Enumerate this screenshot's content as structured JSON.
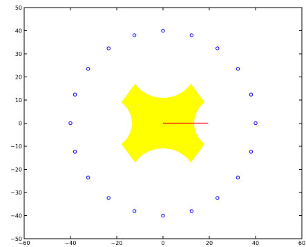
{
  "chart_data": {
    "type": "scatter",
    "title": "",
    "xlabel": "",
    "ylabel": "",
    "xlim": [
      -60,
      60
    ],
    "ylim": [
      -50,
      50
    ],
    "x_ticks": [
      -60,
      -40,
      -20,
      0,
      20,
      40,
      60
    ],
    "y_ticks": [
      -50,
      -40,
      -30,
      -20,
      -10,
      0,
      10,
      20,
      30,
      40,
      50
    ],
    "x_tick_labels": [
      "−60",
      "−40",
      "−20",
      "0",
      "20",
      "40",
      "60"
    ],
    "y_tick_labels": [
      "−50",
      "−40",
      "−30",
      "−20",
      "−10",
      "0",
      "10",
      "20",
      "30",
      "40",
      "50"
    ],
    "grid": false,
    "legend": "none",
    "series": [
      {
        "kind": "markers",
        "marker": "circle",
        "color": "#0000ff",
        "x": [
          40,
          38.04,
          32.36,
          23.51,
          12.36,
          0,
          -12.36,
          -23.51,
          -32.36,
          -38.04,
          -40,
          -38.04,
          -32.36,
          -23.51,
          -12.36,
          0,
          12.36,
          23.51,
          32.36,
          38.04
        ],
        "y": [
          0,
          12.36,
          23.51,
          32.36,
          38.04,
          40,
          38.04,
          32.36,
          23.51,
          12.36,
          0,
          -12.36,
          -23.51,
          -32.36,
          -38.04,
          -40,
          -38.04,
          -32.36,
          -23.51,
          -12.36
        ]
      },
      {
        "kind": "filled-shape",
        "color": "#ffff00",
        "description_points_x": [
          -18,
          -12,
          -7,
          0,
          7,
          12,
          18,
          14,
          9,
          9,
          14,
          18,
          12,
          7,
          0,
          -7,
          -12,
          -18,
          -14,
          -9,
          -9,
          -14
        ],
        "description_points_y": [
          9,
          17,
          13,
          11,
          13,
          17,
          9,
          5,
          0,
          0,
          -5,
          -9,
          -17,
          -13,
          -11,
          -13,
          -17,
          -9,
          -5,
          0,
          0,
          5
        ]
      },
      {
        "kind": "line",
        "color": "#ff0000",
        "x": [
          0,
          19.5
        ],
        "y": [
          0,
          0
        ]
      }
    ]
  }
}
